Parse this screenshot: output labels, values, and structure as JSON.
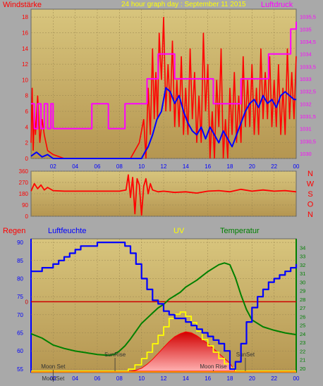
{
  "header": {
    "left_title": "Windstärke",
    "center_title": "24 hour graph day : September 11 2015",
    "right_title": "Luftdruck"
  },
  "colors": {
    "background": "#a9a9a9",
    "plot_top": "#d7c37a",
    "plot_bottom": "#b89a56",
    "wind_gust": "#ff0000",
    "wind_avg": "#0000ff",
    "pressure": "#ff00ff",
    "direction": "#ff0000",
    "humidity": "#0000ff",
    "temperature": "#008000",
    "uv": "#ffff00",
    "solar": "#ff0000",
    "rain": "#cc0000",
    "axis_left": "#ff0000",
    "axis_right_top": "#ff00ff",
    "axis_right_bottom": "#008000",
    "axis_left_bottom": "#0000ff"
  },
  "chart_data": [
    {
      "id": "wind-pressure",
      "type": "line",
      "x_ticks": [
        "02",
        "04",
        "06",
        "08",
        "10",
        "12",
        "14",
        "16",
        "18",
        "20",
        "22",
        "00"
      ],
      "left_axis": {
        "ticks": [
          0,
          2,
          4,
          6,
          8,
          10,
          12,
          14,
          16,
          18
        ],
        "range": [
          0,
          19
        ]
      },
      "right_axis": {
        "ticks": [
          "1030",
          "1030,5",
          "1031",
          "1031,5",
          "1032",
          "1032,5",
          "1033",
          "1033,5",
          "1034",
          "1034,5",
          "1035",
          "1035,5"
        ],
        "range": [
          1029.8,
          1035.8
        ]
      },
      "series": [
        {
          "name": "Windstärke",
          "role": "gust",
          "x": [
            0,
            0.1,
            0.2,
            0.3,
            0.4,
            0.6,
            0.8,
            1.0,
            1.2,
            1.5,
            2,
            3,
            4,
            5,
            6,
            7,
            8,
            9,
            9.8,
            10.2,
            10.6,
            11,
            11.3,
            11.6,
            12,
            12.4,
            12.8,
            13.2,
            13.6,
            14,
            14.4,
            14.8,
            15.2,
            15.6,
            16,
            16.4,
            16.8,
            17.2,
            17.6,
            18,
            18.4,
            18.8,
            19.2,
            19.6,
            20,
            20.4,
            20.8,
            21.2,
            21.6,
            22,
            22.4,
            22.8,
            23.2,
            23.6,
            24
          ],
          "values": [
            2,
            9,
            1,
            6,
            3,
            8,
            2,
            5,
            3,
            1,
            0.5,
            0,
            0,
            0,
            0,
            0,
            0,
            0,
            2,
            5,
            9,
            14,
            11,
            16,
            18,
            12,
            15,
            10,
            13,
            9,
            14,
            11,
            8,
            16,
            12,
            6,
            10,
            14,
            5,
            9,
            11,
            8,
            13,
            10,
            12,
            9,
            14,
            11,
            13,
            10,
            12,
            9,
            14,
            11,
            13
          ]
        },
        {
          "name": "Windstärke",
          "role": "average",
          "x": [
            0,
            0.5,
            1,
            1.5,
            2,
            4,
            6,
            8,
            9,
            9.5,
            10,
            10.3,
            10.6,
            11,
            11.4,
            11.8,
            12.2,
            12.6,
            13,
            13.4,
            13.8,
            14.2,
            14.6,
            15,
            15.4,
            15.8,
            16.2,
            16.6,
            17,
            17.4,
            17.8,
            18.2,
            18.6,
            19,
            19.4,
            19.8,
            20.2,
            20.6,
            21,
            21.4,
            21.8,
            22.2,
            22.6,
            23,
            23.4,
            23.8,
            24
          ],
          "values": [
            0.3,
            0.8,
            0.2,
            0.5,
            0,
            0,
            0,
            0,
            0,
            0,
            0,
            0.8,
            1.5,
            3,
            5,
            6,
            9,
            8.5,
            7,
            8,
            6,
            4.5,
            3.5,
            3,
            4,
            2.5,
            4,
            3,
            2,
            3.5,
            2.5,
            1.5,
            3,
            4.5,
            6,
            7,
            7.5,
            6.5,
            8,
            7,
            7.5,
            6.5,
            8,
            8.5,
            8,
            7.5,
            7.5
          ]
        },
        {
          "name": "Luftdruck",
          "role": "pressure",
          "x": [
            0,
            0.3,
            0.6,
            0.9,
            1.2,
            1.5,
            1.8,
            2,
            3,
            4,
            5,
            5.5,
            6,
            7,
            8,
            8.5,
            9,
            10,
            10.5,
            11,
            11.5,
            12,
            13,
            14,
            15,
            16,
            16.5,
            17,
            18,
            18.5,
            19,
            20,
            20.5,
            21,
            21.5,
            22,
            23,
            23.5,
            24
          ],
          "values": [
            1032,
            1031,
            1032,
            1031,
            1032,
            1031,
            1032,
            1031,
            1031,
            1031,
            1031,
            1032,
            1032,
            1031,
            1031,
            1032,
            1032,
            1032,
            1033,
            1033,
            1034,
            1034,
            1033,
            1033,
            1033,
            1033,
            1032,
            1032,
            1032,
            1032,
            1033,
            1033,
            1033,
            1033,
            1034,
            1034,
            1034,
            1035,
            1035.3
          ]
        }
      ]
    },
    {
      "id": "wind-direction",
      "type": "line",
      "left_axis": {
        "ticks": [
          0,
          90,
          180,
          270,
          360
        ],
        "range": [
          0,
          360
        ]
      },
      "right_labels": [
        "N",
        "W",
        "S",
        "O",
        "N"
      ],
      "series": [
        {
          "name": "Windrichtung",
          "x": [
            0,
            0.3,
            0.6,
            0.9,
            1.2,
            1.5,
            2,
            3,
            4,
            6,
            8,
            8.6,
            8.8,
            9.0,
            9.2,
            9.4,
            9.6,
            9.8,
            10,
            10.2,
            10.4,
            10.6,
            10.8,
            11,
            11.5,
            12,
            13,
            14,
            15,
            16,
            17,
            18,
            19,
            20,
            21,
            22,
            23,
            24
          ],
          "values": [
            200,
            260,
            220,
            250,
            210,
            230,
            205,
            200,
            200,
            200,
            200,
            210,
            330,
            150,
            310,
            20,
            300,
            250,
            10,
            240,
            300,
            180,
            260,
            210,
            195,
            200,
            190,
            195,
            185,
            200,
            205,
            195,
            215,
            200,
            210,
            200,
            205,
            195
          ]
        }
      ]
    },
    {
      "id": "humidity-temperature",
      "type": "line",
      "header": {
        "left": "Regen",
        "humidity": "Luftfeuchte",
        "uv": "UV",
        "temperature": "Temperatur"
      },
      "left_axis": {
        "ticks": [
          55,
          60,
          65,
          70,
          75,
          80,
          85,
          90
        ],
        "range": [
          54,
          91
        ]
      },
      "rain_axis": {
        "ticks": [
          "0"
        ],
        "value": 0
      },
      "right_axis": {
        "ticks": [
          20,
          21,
          22,
          23,
          24,
          25,
          26,
          27,
          28,
          29,
          30,
          31,
          32,
          33,
          34
        ],
        "range": [
          19.5,
          35
        ]
      },
      "annotations": [
        "Moon Set",
        "SunRise",
        "Moon Rise",
        "SunSet",
        "MoonSet"
      ],
      "series": [
        {
          "name": "Luftfeuchte",
          "x": [
            0,
            0.5,
            1,
            1.5,
            2,
            2.5,
            3,
            3.5,
            4,
            4.5,
            5,
            6,
            7,
            8,
            8.5,
            9,
            9.5,
            10,
            10.5,
            11,
            11.5,
            12,
            12.5,
            13,
            13.5,
            14,
            14.5,
            15,
            15.5,
            16,
            16.5,
            17,
            17.5,
            18,
            18.5,
            19,
            19.5,
            20,
            20.5,
            21,
            21.5,
            22,
            22.5,
            23,
            23.5,
            24
          ],
          "values": [
            82,
            82,
            83,
            83,
            84,
            85,
            86,
            87,
            88,
            89,
            89,
            90,
            90,
            90,
            89,
            87,
            84,
            80,
            77,
            74,
            73,
            71,
            70,
            69,
            69,
            68,
            67,
            66,
            65,
            64,
            63,
            62,
            60,
            55,
            57,
            62,
            68,
            72,
            75,
            77,
            79,
            80,
            81,
            82,
            83,
            84
          ]
        },
        {
          "name": "Temperatur",
          "x": [
            0,
            1,
            2,
            3,
            4,
            5,
            6,
            7,
            7.5,
            8,
            8.5,
            9,
            9.5,
            10,
            10.5,
            11,
            11.5,
            12,
            12.5,
            13,
            13.5,
            14,
            14.5,
            15,
            15.5,
            16,
            16.5,
            17,
            17.5,
            18,
            18.5,
            19,
            19.5,
            20,
            21,
            22,
            23,
            24
          ],
          "values": [
            24,
            23.5,
            22.7,
            22.3,
            22.0,
            21.8,
            21.6,
            21.5,
            21.6,
            22.0,
            22.6,
            23.4,
            24.3,
            25.2,
            25.8,
            26.4,
            27.0,
            27.4,
            28.0,
            28.4,
            28.8,
            29.4,
            29.8,
            30.2,
            30.7,
            31.2,
            31.6,
            32.0,
            32.2,
            32.0,
            30.5,
            28.5,
            26.8,
            25.6,
            24.8,
            24.4,
            24.1,
            23.9
          ]
        },
        {
          "name": "UV",
          "x": [
            0,
            7,
            8,
            8.8,
            9.4,
            10,
            10.5,
            11,
            11.5,
            12,
            12.5,
            13,
            13.5,
            14,
            14.5,
            15,
            15.5,
            16,
            16.5,
            17,
            17.5,
            18,
            18.5,
            24
          ],
          "values": [
            0,
            0,
            0,
            0.2,
            0.6,
            1.2,
            1.8,
            2.6,
            3.4,
            4.2,
            5.0,
            5.4,
            5.6,
            5.2,
            4.6,
            3.8,
            3.0,
            2.4,
            1.8,
            1.2,
            0.7,
            0.3,
            0,
            0
          ]
        },
        {
          "name": "Solar",
          "x": [
            0,
            8,
            9,
            9.5,
            10,
            10.5,
            11,
            11.5,
            12,
            12.5,
            13,
            13.5,
            14,
            14.5,
            15,
            15.5,
            16,
            16.5,
            17,
            17.5,
            18,
            18.3,
            18.5,
            24
          ],
          "values": [
            0,
            0,
            0,
            0.1,
            0.3,
            0.7,
            1.2,
            1.8,
            2.4,
            3.0,
            3.5,
            3.8,
            4.0,
            3.9,
            3.6,
            3.2,
            2.8,
            2.3,
            1.8,
            1.3,
            0.8,
            0.3,
            0,
            0
          ]
        }
      ],
      "x_ticks": [
        "02",
        "04",
        "06",
        "08",
        "10",
        "12",
        "14",
        "16",
        "18",
        "20",
        "22",
        "00"
      ]
    }
  ]
}
